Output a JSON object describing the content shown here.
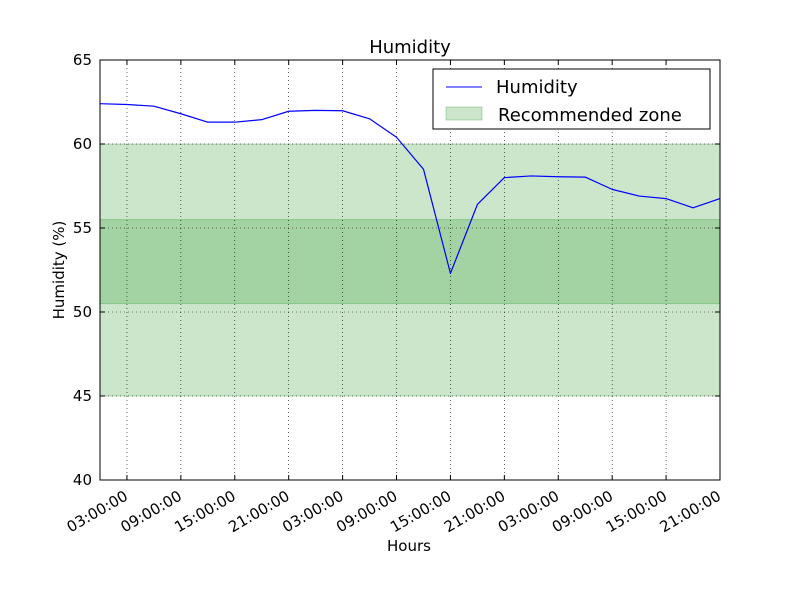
{
  "chart_data": {
    "type": "line",
    "title": "Humidity",
    "xlabel": "Hours",
    "ylabel": "Humidity (%)",
    "ylim": [
      40,
      65
    ],
    "y_ticks": [
      40,
      45,
      50,
      55,
      60,
      65
    ],
    "x_tick_labels": [
      "03:00:00",
      "09:00:00",
      "15:00:00",
      "21:00:00",
      "03:00:00",
      "09:00:00",
      "15:00:00",
      "21:00:00",
      "03:00:00",
      "09:00:00",
      "15:00:00",
      "21:00:00"
    ],
    "x_hours": [
      0,
      3,
      6,
      9,
      12,
      15,
      18,
      21,
      24,
      27,
      30,
      33,
      36,
      39,
      42,
      45,
      48,
      51,
      54,
      57,
      60,
      63,
      66,
      69
    ],
    "x_first_tick_hour": 3,
    "x_tick_step_hours": 6,
    "grid": true,
    "legend_position": "top-right",
    "series": [
      {
        "name": "Humidity",
        "color": "#0000ff",
        "values": [
          62.4,
          62.35,
          62.25,
          61.8,
          61.3,
          61.3,
          61.45,
          61.95,
          62.0,
          61.98,
          61.5,
          60.4,
          58.5,
          52.3,
          56.4,
          58.0,
          58.1,
          58.05,
          58.03,
          57.3,
          56.9,
          56.75,
          56.2,
          56.75
        ]
      }
    ],
    "bands": [
      {
        "name": "Recommended zone",
        "color": "#008000",
        "opacity": 0.2,
        "from": 45,
        "to": 60
      },
      {
        "color": "#008000",
        "opacity": 0.2,
        "from": 50.5,
        "to": 55.5
      }
    ]
  }
}
